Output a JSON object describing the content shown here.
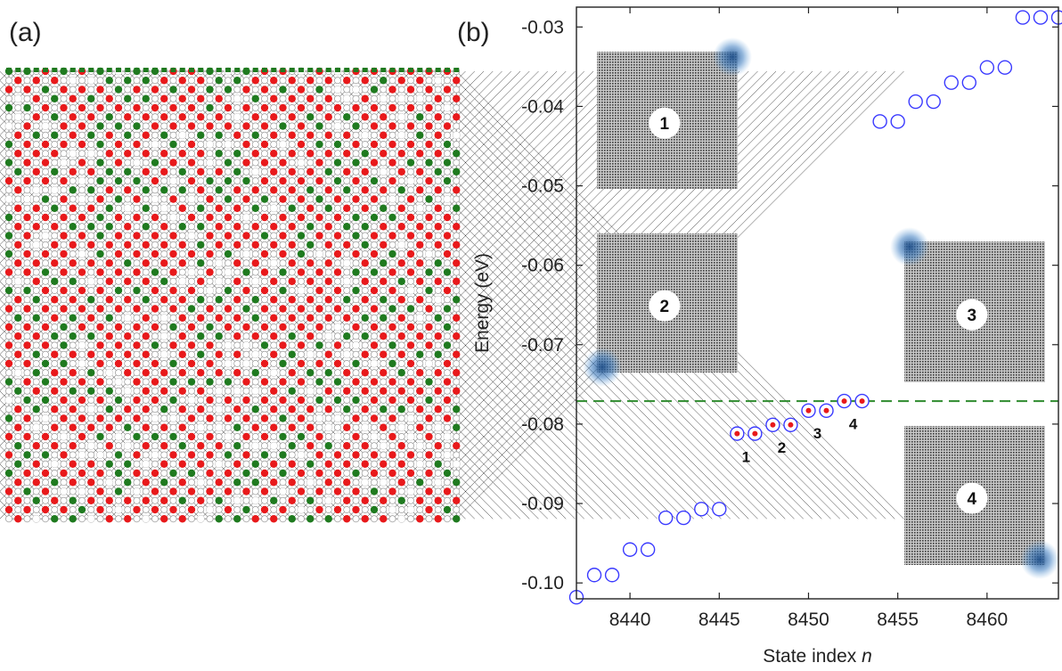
{
  "panels": {
    "a_label": "(a)",
    "b_label": "(b)"
  },
  "lattice": {
    "colors": {
      "red": "#e8191b",
      "green": "#1f7a1f",
      "bond": "#2a2a2a",
      "empty": "#ffffff"
    }
  },
  "chart_data": {
    "type": "scatter",
    "xlabel_prefix": "State index ",
    "xlabel_var": "n",
    "ylabel": "Energy (eV)",
    "xlim": [
      8437,
      8464
    ],
    "ylim": [
      -0.102,
      -0.0275
    ],
    "xticks": [
      8440,
      8445,
      8450,
      8455,
      8460
    ],
    "yticks": [
      -0.03,
      -0.04,
      -0.05,
      -0.06,
      -0.07,
      -0.08,
      -0.09,
      -0.1
    ],
    "ytick_labels": [
      "-0.03",
      "-0.04",
      "-0.05",
      "-0.06",
      "-0.07",
      "-0.08",
      "-0.09",
      "-0.10"
    ],
    "marker_color": "#3a3aff",
    "highlight_color": "#e8191b",
    "threshold_color": "#2e8b2e",
    "threshold_y": -0.0771,
    "points": [
      {
        "x": 8437,
        "y": -0.1018
      },
      {
        "x": 8438,
        "y": -0.099
      },
      {
        "x": 8439,
        "y": -0.099
      },
      {
        "x": 8440,
        "y": -0.0958
      },
      {
        "x": 8441,
        "y": -0.0958
      },
      {
        "x": 8442,
        "y": -0.0918
      },
      {
        "x": 8443,
        "y": -0.0918
      },
      {
        "x": 8444,
        "y": -0.0907
      },
      {
        "x": 8445,
        "y": -0.0907
      },
      {
        "x": 8446,
        "y": -0.0812,
        "h": true
      },
      {
        "x": 8447,
        "y": -0.0812,
        "h": true
      },
      {
        "x": 8448,
        "y": -0.0801,
        "h": true
      },
      {
        "x": 8449,
        "y": -0.0801,
        "h": true
      },
      {
        "x": 8450,
        "y": -0.0783,
        "h": true
      },
      {
        "x": 8451,
        "y": -0.0783,
        "h": true
      },
      {
        "x": 8452,
        "y": -0.0771,
        "h": true
      },
      {
        "x": 8453,
        "y": -0.0771,
        "h": true
      },
      {
        "x": 8454,
        "y": -0.0419
      },
      {
        "x": 8455,
        "y": -0.0419
      },
      {
        "x": 8456,
        "y": -0.0394
      },
      {
        "x": 8457,
        "y": -0.0394
      },
      {
        "x": 8458,
        "y": -0.037
      },
      {
        "x": 8459,
        "y": -0.037
      },
      {
        "x": 8460,
        "y": -0.0351
      },
      {
        "x": 8461,
        "y": -0.0351
      },
      {
        "x": 8462,
        "y": -0.0288
      },
      {
        "x": 8463,
        "y": -0.0288
      },
      {
        "x": 8464,
        "y": -0.0288
      }
    ],
    "state_labels": [
      {
        "text": "1",
        "x": 8446.5,
        "y": -0.0848
      },
      {
        "text": "2",
        "x": 8448.5,
        "y": -0.0836
      },
      {
        "text": "3",
        "x": 8450.5,
        "y": -0.0818
      },
      {
        "text": "4",
        "x": 8452.5,
        "y": -0.0806
      }
    ],
    "insets": [
      {
        "label": "1",
        "corner": "top-right"
      },
      {
        "label": "2",
        "corner": "bottom-left"
      },
      {
        "label": "3",
        "corner": "top-left"
      },
      {
        "label": "4",
        "corner": "bottom-right"
      }
    ]
  }
}
